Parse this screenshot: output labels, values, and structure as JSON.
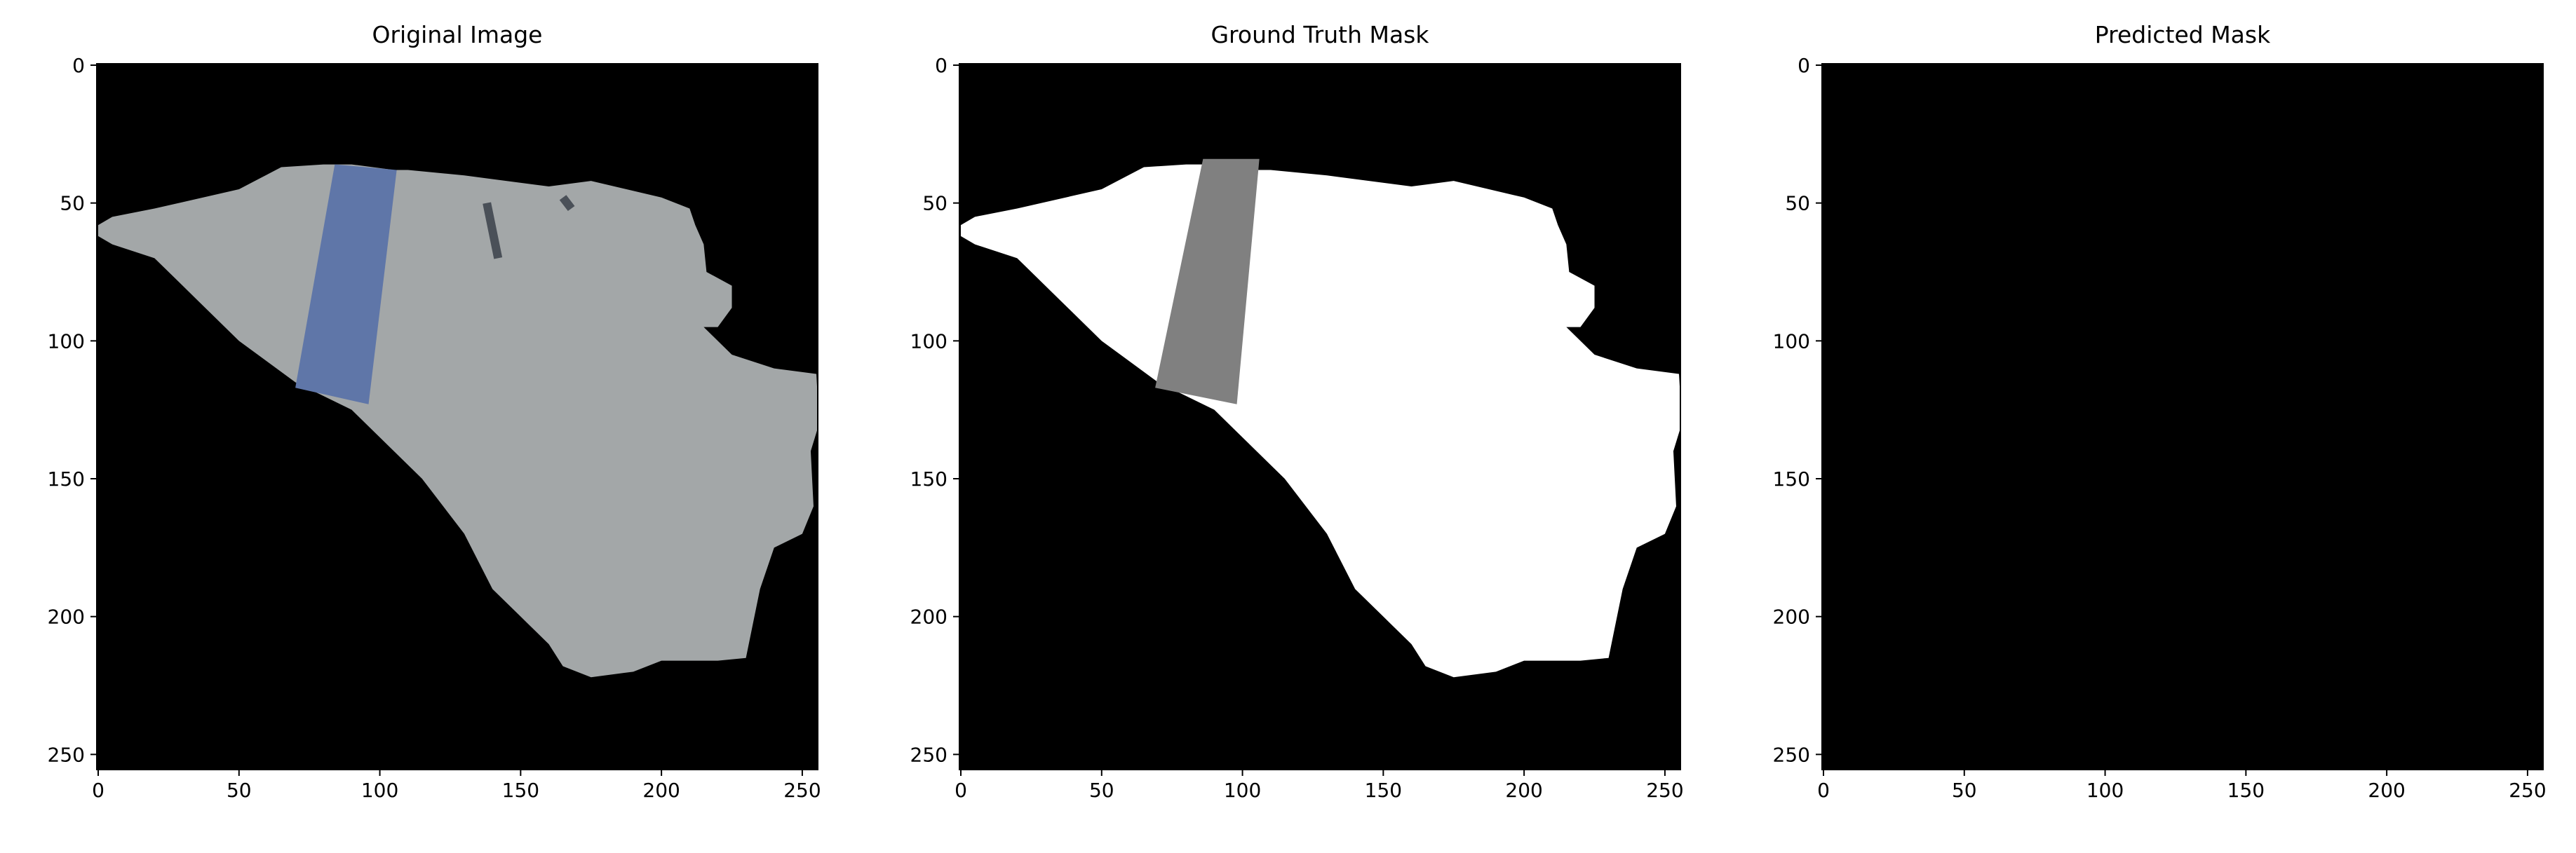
{
  "chart_data": [
    {
      "type": "image",
      "title": "Original Image",
      "xlim": [
        -0.5,
        255.5
      ],
      "ylim": [
        255.5,
        -0.5
      ],
      "xticks": [
        0,
        50,
        100,
        150,
        200,
        250
      ],
      "yticks": [
        0,
        50,
        100,
        150,
        200,
        250
      ]
    },
    {
      "type": "image",
      "title": "Ground Truth Mask",
      "xlim": [
        -0.5,
        255.5
      ],
      "ylim": [
        255.5,
        -0.5
      ],
      "xticks": [
        0,
        50,
        100,
        150,
        200,
        250
      ],
      "yticks": [
        0,
        50,
        100,
        150,
        200,
        250
      ]
    },
    {
      "type": "image",
      "title": "Predicted Mask",
      "xlim": [
        -0.5,
        255.5
      ],
      "ylim": [
        255.5,
        -0.5
      ],
      "xticks": [
        0,
        50,
        100,
        150,
        200,
        250
      ],
      "yticks": [
        0,
        50,
        100,
        150,
        200,
        250
      ]
    }
  ]
}
